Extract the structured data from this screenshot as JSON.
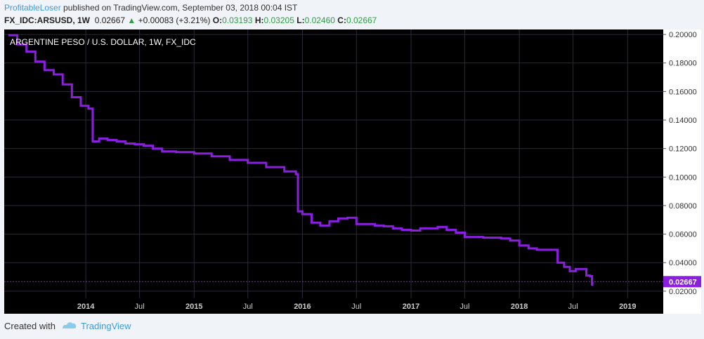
{
  "header": {
    "user": "ProfitableLoser",
    "published_text": " published on TradingView.com, September 03, 2018 00:04 IST"
  },
  "quote": {
    "symbol": "FX_IDC:ARSUSD, 1W",
    "last": "0.02667",
    "change_arrow": "▲",
    "change": "+0.00083 (+3.21%)",
    "open_label": "O:",
    "open": "0.03193",
    "high_label": "H:",
    "high": "0.03205",
    "low_label": "L:",
    "low": "0.02460",
    "close_label": "C:",
    "close": "0.02667"
  },
  "footer": {
    "created_with": "Created with",
    "brand": "TradingView"
  },
  "colors": {
    "background": "#000000",
    "line": "#8b1fe0",
    "grid": "#2a2a3a",
    "last_price_bg": "#8b1fe0",
    "positive": "#2ea043",
    "brand": "#3d9ce0"
  },
  "chart_data": {
    "type": "line",
    "title": "ARGENTINE PESO / U.S. DOLLAR, 1W, FX_IDC",
    "xlabel": "",
    "ylabel": "",
    "ylim": [
      0.015,
      0.2035
    ],
    "grid": true,
    "y_ticks": [
      "0.20000",
      "0.18000",
      "0.16000",
      "0.14000",
      "0.12000",
      "0.10000",
      "0.08000",
      "0.06000",
      "0.04000",
      "0.02000"
    ],
    "x_tick_labels": [
      {
        "date": "2014-01-01",
        "label": "2014",
        "bold": true
      },
      {
        "date": "2014-07-01",
        "label": "Jul",
        "bold": false
      },
      {
        "date": "2015-01-01",
        "label": "2015",
        "bold": true
      },
      {
        "date": "2015-07-01",
        "label": "Jul",
        "bold": false
      },
      {
        "date": "2016-01-01",
        "label": "2016",
        "bold": true
      },
      {
        "date": "2016-07-01",
        "label": "Jul",
        "bold": false
      },
      {
        "date": "2017-01-01",
        "label": "2017",
        "bold": true
      },
      {
        "date": "2017-07-01",
        "label": "Jul",
        "bold": false
      },
      {
        "date": "2018-01-01",
        "label": "2018",
        "bold": true
      },
      {
        "date": "2018-07-01",
        "label": "Jul",
        "bold": false
      },
      {
        "date": "2019-01-01",
        "label": "2019",
        "bold": true
      }
    ],
    "last_price": {
      "value": 0.02667,
      "label": "0.02667"
    },
    "series": [
      {
        "points": [
          [
            "2013-04-15",
            0.1995
          ],
          [
            "2013-05-15",
            0.193
          ],
          [
            "2013-06-15",
            0.188
          ],
          [
            "2013-07-15",
            0.181
          ],
          [
            "2013-08-15",
            0.175
          ],
          [
            "2013-09-15",
            0.172
          ],
          [
            "2013-10-15",
            0.165
          ],
          [
            "2013-11-15",
            0.156
          ],
          [
            "2013-12-15",
            0.15
          ],
          [
            "2014-01-10",
            0.148
          ],
          [
            "2014-01-24",
            0.125
          ],
          [
            "2014-02-15",
            0.127
          ],
          [
            "2014-03-15",
            0.126
          ],
          [
            "2014-04-15",
            0.125
          ],
          [
            "2014-05-15",
            0.1235
          ],
          [
            "2014-06-15",
            0.123
          ],
          [
            "2014-07-15",
            0.122
          ],
          [
            "2014-08-15",
            0.12
          ],
          [
            "2014-09-15",
            0.118
          ],
          [
            "2014-11-01",
            0.1175
          ],
          [
            "2015-01-01",
            0.1165
          ],
          [
            "2015-03-01",
            0.1145
          ],
          [
            "2015-05-01",
            0.112
          ],
          [
            "2015-07-01",
            0.11
          ],
          [
            "2015-09-01",
            0.107
          ],
          [
            "2015-11-01",
            0.104
          ],
          [
            "2015-12-10",
            0.102
          ],
          [
            "2015-12-17",
            0.076
          ],
          [
            "2016-01-01",
            0.074
          ],
          [
            "2016-02-01",
            0.068
          ],
          [
            "2016-03-01",
            0.066
          ],
          [
            "2016-04-01",
            0.069
          ],
          [
            "2016-05-01",
            0.071
          ],
          [
            "2016-06-01",
            0.0715
          ],
          [
            "2016-07-01",
            0.067
          ],
          [
            "2016-08-01",
            0.067
          ],
          [
            "2016-09-01",
            0.066
          ],
          [
            "2016-10-01",
            0.0655
          ],
          [
            "2016-11-01",
            0.064
          ],
          [
            "2016-12-01",
            0.063
          ],
          [
            "2017-01-01",
            0.0625
          ],
          [
            "2017-02-01",
            0.064
          ],
          [
            "2017-03-01",
            0.064
          ],
          [
            "2017-04-01",
            0.065
          ],
          [
            "2017-05-01",
            0.063
          ],
          [
            "2017-06-01",
            0.061
          ],
          [
            "2017-07-01",
            0.058
          ],
          [
            "2017-08-01",
            0.058
          ],
          [
            "2017-09-01",
            0.0575
          ],
          [
            "2017-10-01",
            0.0575
          ],
          [
            "2017-11-01",
            0.057
          ],
          [
            "2017-12-01",
            0.0555
          ],
          [
            "2018-01-01",
            0.052
          ],
          [
            "2018-02-01",
            0.05
          ],
          [
            "2018-03-01",
            0.049
          ],
          [
            "2018-04-01",
            0.049
          ],
          [
            "2018-04-25",
            0.049
          ],
          [
            "2018-05-10",
            0.04
          ],
          [
            "2018-06-01",
            0.037
          ],
          [
            "2018-06-20",
            0.034
          ],
          [
            "2018-07-10",
            0.0355
          ],
          [
            "2018-08-01",
            0.0355
          ],
          [
            "2018-08-15",
            0.031
          ],
          [
            "2018-08-27",
            0.0305
          ],
          [
            "2018-09-03",
            0.0246
          ],
          [
            "2018-09-04",
            0.02667
          ]
        ]
      }
    ]
  }
}
